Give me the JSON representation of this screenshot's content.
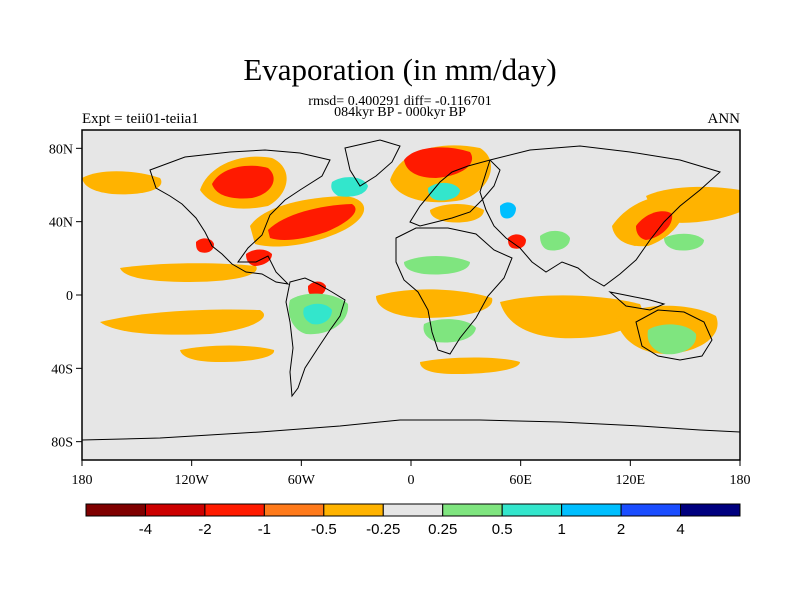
{
  "title": "Evaporation (in mm/day)",
  "subtitle_line1": "rmsd= 0.400291 diff= -0.116701",
  "subtitle_line2": "084kyr BP - 000kyr BP",
  "left_label": "Expt = teii01-teiia1",
  "right_label": "ANN",
  "map": {
    "projection": "cylindrical-equidistant",
    "lon_range": [
      -180,
      180
    ],
    "lat_range": [
      -90,
      90
    ],
    "background_color": "#e6e6e6",
    "x_ticks": [
      {
        "value": -180,
        "label": "180"
      },
      {
        "value": -120,
        "label": "120W"
      },
      {
        "value": -60,
        "label": "60W"
      },
      {
        "value": 0,
        "label": "0"
      },
      {
        "value": 60,
        "label": "60E"
      },
      {
        "value": 120,
        "label": "120E"
      },
      {
        "value": 180,
        "label": "180"
      }
    ],
    "y_ticks": [
      {
        "value": 80,
        "label": "80N"
      },
      {
        "value": 40,
        "label": "40N"
      },
      {
        "value": 0,
        "label": "0"
      },
      {
        "value": -40,
        "label": "40S"
      },
      {
        "value": -80,
        "label": "80S"
      }
    ]
  },
  "colorbar": {
    "colors": [
      "#7f0000",
      "#cc0000",
      "#ff1a00",
      "#ff7a1a",
      "#ffb300",
      "#e6e6e6",
      "#7fe57f",
      "#33e6cc",
      "#00bfff",
      "#1a4dff",
      "#00007f"
    ],
    "labels": [
      "-4",
      "-2",
      "-1",
      "-0.5",
      "-0.25",
      "0.25",
      "0.5",
      "1",
      "2",
      "4"
    ]
  }
}
